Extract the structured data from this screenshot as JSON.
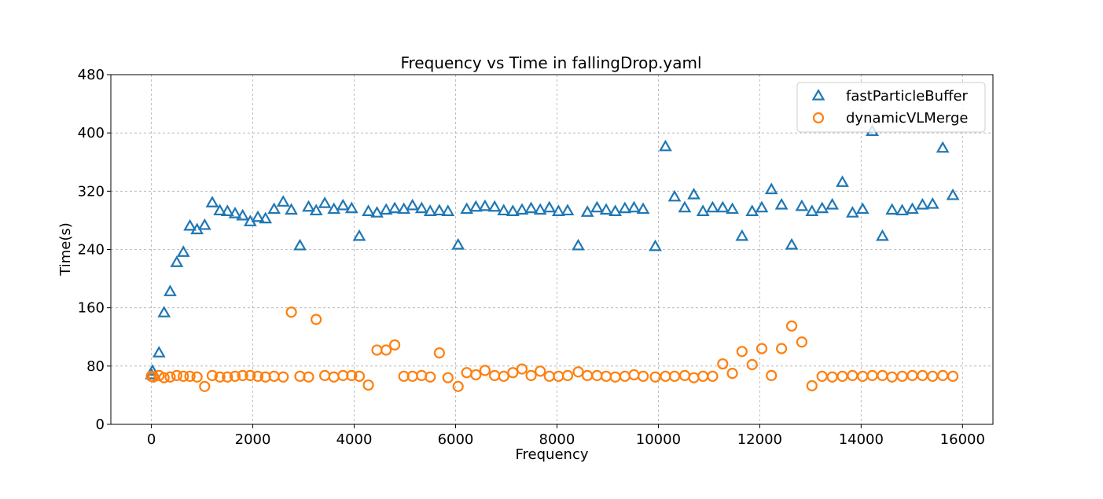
{
  "chart_data": {
    "type": "scatter",
    "title": "Frequency vs Time in fallingDrop.yaml",
    "xlabel": "Frequency",
    "ylabel": "Time(s)",
    "xlim": [
      -800,
      16600
    ],
    "ylim": [
      0,
      480
    ],
    "xticks": [
      0,
      2000,
      4000,
      6000,
      8000,
      10000,
      12000,
      14000,
      16000
    ],
    "xtick_labels": [
      "0",
      "2000",
      "4000",
      "6000",
      "8000",
      "10000",
      "12000",
      "14000",
      "16000"
    ],
    "yticks": [
      0,
      80,
      160,
      240,
      320,
      400,
      480
    ],
    "ytick_labels": [
      "0",
      "80",
      "160",
      "240",
      "320",
      "400",
      "480"
    ],
    "grid": true,
    "legend_position": "top-right",
    "series": [
      {
        "name": "fastParticleBuffer",
        "marker": "triangle",
        "color": "#1f77b4",
        "points": [
          [
            0,
            68
          ],
          [
            20,
            73
          ],
          [
            150,
            98
          ],
          [
            250,
            153
          ],
          [
            370,
            182
          ],
          [
            500,
            222
          ],
          [
            630,
            236
          ],
          [
            760,
            272
          ],
          [
            900,
            267
          ],
          [
            1050,
            273
          ],
          [
            1200,
            304
          ],
          [
            1350,
            293
          ],
          [
            1500,
            292
          ],
          [
            1650,
            289
          ],
          [
            1800,
            286
          ],
          [
            1950,
            278
          ],
          [
            2100,
            284
          ],
          [
            2250,
            282
          ],
          [
            2420,
            295
          ],
          [
            2600,
            305
          ],
          [
            2760,
            294
          ],
          [
            2930,
            245
          ],
          [
            3100,
            298
          ],
          [
            3250,
            293
          ],
          [
            3420,
            303
          ],
          [
            3600,
            295
          ],
          [
            3780,
            300
          ],
          [
            3950,
            296
          ],
          [
            4100,
            258
          ],
          [
            4280,
            292
          ],
          [
            4450,
            290
          ],
          [
            4630,
            294
          ],
          [
            4800,
            296
          ],
          [
            4980,
            295
          ],
          [
            5150,
            300
          ],
          [
            5330,
            296
          ],
          [
            5500,
            292
          ],
          [
            5680,
            293
          ],
          [
            5850,
            292
          ],
          [
            6050,
            246
          ],
          [
            6220,
            295
          ],
          [
            6400,
            298
          ],
          [
            6580,
            299
          ],
          [
            6770,
            298
          ],
          [
            6950,
            293
          ],
          [
            7130,
            292
          ],
          [
            7310,
            294
          ],
          [
            7490,
            296
          ],
          [
            7670,
            294
          ],
          [
            7850,
            297
          ],
          [
            8030,
            292
          ],
          [
            8210,
            293
          ],
          [
            8420,
            245
          ],
          [
            8600,
            291
          ],
          [
            8790,
            297
          ],
          [
            8970,
            294
          ],
          [
            9150,
            292
          ],
          [
            9340,
            296
          ],
          [
            9520,
            297
          ],
          [
            9700,
            295
          ],
          [
            9940,
            244
          ],
          [
            10140,
            381
          ],
          [
            10320,
            312
          ],
          [
            10520,
            297
          ],
          [
            10700,
            315
          ],
          [
            10880,
            292
          ],
          [
            11070,
            297
          ],
          [
            11270,
            297
          ],
          [
            11460,
            295
          ],
          [
            11650,
            258
          ],
          [
            11850,
            292
          ],
          [
            12040,
            297
          ],
          [
            12230,
            322
          ],
          [
            12430,
            301
          ],
          [
            12630,
            246
          ],
          [
            12830,
            299
          ],
          [
            13030,
            292
          ],
          [
            13230,
            296
          ],
          [
            13430,
            301
          ],
          [
            13630,
            332
          ],
          [
            13830,
            290
          ],
          [
            14030,
            295
          ],
          [
            14220,
            402
          ],
          [
            14420,
            258
          ],
          [
            14610,
            294
          ],
          [
            14810,
            293
          ],
          [
            15010,
            295
          ],
          [
            15210,
            301
          ],
          [
            15410,
            302
          ],
          [
            15610,
            379
          ],
          [
            15810,
            314
          ]
        ]
      },
      {
        "name": "dynamicVLMerge",
        "marker": "circle",
        "color": "#ff7f0e",
        "points": [
          [
            0,
            66
          ],
          [
            40,
            65
          ],
          [
            150,
            67
          ],
          [
            250,
            64
          ],
          [
            370,
            65
          ],
          [
            500,
            67
          ],
          [
            630,
            66
          ],
          [
            760,
            66
          ],
          [
            900,
            65
          ],
          [
            1050,
            52
          ],
          [
            1200,
            67
          ],
          [
            1350,
            65
          ],
          [
            1500,
            65
          ],
          [
            1650,
            66
          ],
          [
            1800,
            67
          ],
          [
            1950,
            67
          ],
          [
            2100,
            66
          ],
          [
            2250,
            65
          ],
          [
            2420,
            66
          ],
          [
            2600,
            65
          ],
          [
            2760,
            154
          ],
          [
            2930,
            66
          ],
          [
            3100,
            65
          ],
          [
            3250,
            144
          ],
          [
            3420,
            67
          ],
          [
            3600,
            65
          ],
          [
            3780,
            67
          ],
          [
            3950,
            67
          ],
          [
            4100,
            66
          ],
          [
            4280,
            54
          ],
          [
            4450,
            102
          ],
          [
            4630,
            102
          ],
          [
            4800,
            109
          ],
          [
            4980,
            66
          ],
          [
            5150,
            66
          ],
          [
            5330,
            67
          ],
          [
            5500,
            65
          ],
          [
            5680,
            98
          ],
          [
            5850,
            64
          ],
          [
            6050,
            52
          ],
          [
            6220,
            71
          ],
          [
            6400,
            68
          ],
          [
            6580,
            74
          ],
          [
            6770,
            67
          ],
          [
            6950,
            66
          ],
          [
            7130,
            71
          ],
          [
            7310,
            76
          ],
          [
            7490,
            67
          ],
          [
            7670,
            73
          ],
          [
            7850,
            66
          ],
          [
            8030,
            66
          ],
          [
            8210,
            67
          ],
          [
            8420,
            72
          ],
          [
            8600,
            67
          ],
          [
            8790,
            67
          ],
          [
            8970,
            66
          ],
          [
            9150,
            65
          ],
          [
            9340,
            66
          ],
          [
            9520,
            68
          ],
          [
            9700,
            66
          ],
          [
            9940,
            65
          ],
          [
            10140,
            66
          ],
          [
            10320,
            66
          ],
          [
            10520,
            67
          ],
          [
            10700,
            64
          ],
          [
            10880,
            66
          ],
          [
            11070,
            66
          ],
          [
            11270,
            83
          ],
          [
            11460,
            70
          ],
          [
            11650,
            100
          ],
          [
            11850,
            82
          ],
          [
            12040,
            104
          ],
          [
            12230,
            67
          ],
          [
            12430,
            104
          ],
          [
            12630,
            135
          ],
          [
            12830,
            113
          ],
          [
            13030,
            53
          ],
          [
            13230,
            66
          ],
          [
            13430,
            65
          ],
          [
            13630,
            66
          ],
          [
            13830,
            67
          ],
          [
            14030,
            66
          ],
          [
            14220,
            67
          ],
          [
            14420,
            67
          ],
          [
            14610,
            65
          ],
          [
            14810,
            66
          ],
          [
            15010,
            67
          ],
          [
            15210,
            67
          ],
          [
            15410,
            66
          ],
          [
            15610,
            67
          ],
          [
            15810,
            66
          ]
        ]
      }
    ]
  }
}
